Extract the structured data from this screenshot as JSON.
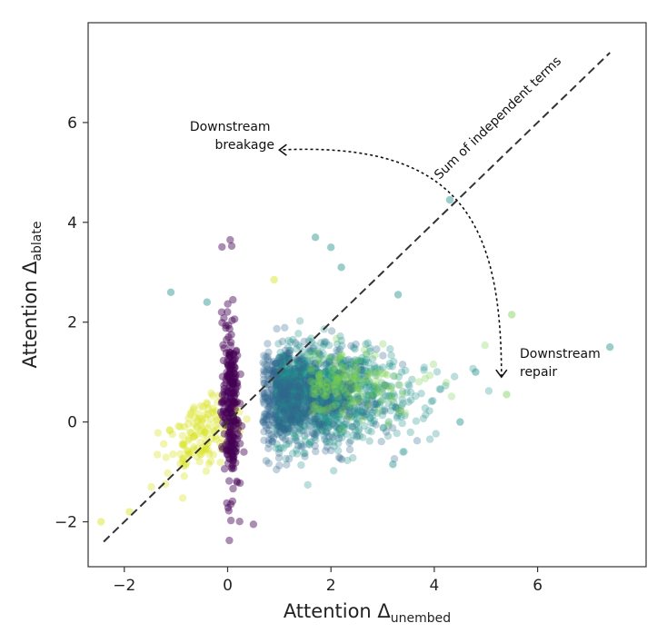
{
  "chart_data": {
    "type": "scatter",
    "xlabel": {
      "main": "Attention Δ",
      "sub": "unembed"
    },
    "ylabel": {
      "main": "Attention Δ",
      "sub": "ablate"
    },
    "xlim": [
      -2.7,
      8.1
    ],
    "ylim": [
      -2.9,
      8.0
    ],
    "xticks": [
      -2,
      0,
      2,
      4,
      6
    ],
    "yticks": [
      -2,
      0,
      2,
      4,
      6
    ],
    "xtick_labels": [
      "−2",
      "0",
      "2",
      "4",
      "6"
    ],
    "ytick_labels": [
      "−2",
      "0",
      "2",
      "4",
      "6"
    ],
    "grid": false,
    "legend": "none",
    "colormap": "viridis",
    "colors": {
      "purple": "#440154",
      "teal": "#21918c",
      "blue": "#31688e",
      "green": "#5ec962",
      "yellow": "#fde725"
    },
    "reference_line": {
      "label": "Sum of independent terms",
      "style": "dashed",
      "x": [
        -2.4,
        7.4
      ],
      "y": [
        -2.4,
        7.4
      ]
    },
    "annotations": [
      {
        "text_lines": [
          "Downstream",
          "breakage"
        ],
        "x": 0.85,
        "y": 5.45
      },
      {
        "text_lines": [
          "Downstream",
          "repair"
        ],
        "x": 5.3,
        "y": 0.9
      }
    ],
    "arrow": {
      "from": [
        5.3,
        0.9
      ],
      "to": [
        1.0,
        5.45
      ],
      "style": "dotted"
    },
    "clusters": [
      {
        "name": "purple",
        "color": "#440154",
        "count": 260,
        "x_center": 0.05,
        "x_spread": 0.08,
        "y_center": 0.3,
        "y_spread": 0.9,
        "opacity": 0.45
      },
      {
        "name": "yellow",
        "color": "#d8e219",
        "count": 140,
        "x_center": -0.5,
        "x_spread": 0.35,
        "y_center": -0.25,
        "y_spread": 0.35,
        "opacity": 0.35
      },
      {
        "name": "teal",
        "color": "#21918c",
        "count": 1300,
        "x_center": 1.8,
        "x_spread": 1.1,
        "y_center": 0.55,
        "y_spread": 0.45,
        "opacity": 0.3
      },
      {
        "name": "blue",
        "color": "#31688e",
        "count": 500,
        "x_center": 1.4,
        "x_spread": 0.9,
        "y_center": 0.45,
        "y_spread": 0.55,
        "opacity": 0.3
      },
      {
        "name": "green",
        "color": "#7ad151",
        "count": 160,
        "x_center": 2.4,
        "x_spread": 1.0,
        "y_center": 0.8,
        "y_spread": 0.35,
        "opacity": 0.3
      }
    ],
    "outliers": [
      {
        "x": 0.05,
        "y": 3.65,
        "color": "#440154"
      },
      {
        "x": 0.5,
        "y": -2.05,
        "color": "#440154"
      },
      {
        "x": -2.45,
        "y": -2.0,
        "color": "#d8e219"
      },
      {
        "x": -1.9,
        "y": -1.8,
        "color": "#d8e219"
      },
      {
        "x": 0.9,
        "y": 2.85,
        "color": "#d8e219"
      },
      {
        "x": 1.7,
        "y": 3.7,
        "color": "#21918c"
      },
      {
        "x": 2.0,
        "y": 3.5,
        "color": "#21918c"
      },
      {
        "x": 2.2,
        "y": 3.1,
        "color": "#21918c"
      },
      {
        "x": 4.3,
        "y": 4.45,
        "color": "#21918c"
      },
      {
        "x": 5.5,
        "y": 2.15,
        "color": "#7ad151"
      },
      {
        "x": 7.4,
        "y": 1.5,
        "color": "#21918c"
      },
      {
        "x": 5.4,
        "y": 0.55,
        "color": "#7ad151"
      },
      {
        "x": 4.8,
        "y": 1.0,
        "color": "#21918c"
      },
      {
        "x": -1.1,
        "y": 2.6,
        "color": "#21918c"
      },
      {
        "x": -0.4,
        "y": 2.4,
        "color": "#21918c"
      },
      {
        "x": 3.3,
        "y": 2.55,
        "color": "#21918c"
      },
      {
        "x": 4.5,
        "y": 0.0,
        "color": "#21918c"
      },
      {
        "x": 3.2,
        "y": -0.85,
        "color": "#21918c"
      }
    ]
  }
}
